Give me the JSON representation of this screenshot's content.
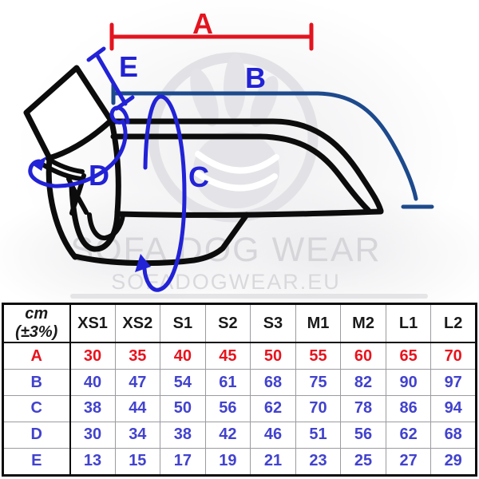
{
  "diagram": {
    "labels": {
      "A": "A",
      "B": "B",
      "C": "C",
      "D": "D",
      "E": "E"
    },
    "watermark": {
      "line1": "SOFA DOG WEAR",
      "line2": "SOFADOGWEAR.EU"
    },
    "colors": {
      "measure_red": "#e3141f",
      "measure_blue": "#2222d6",
      "measure_navy": "#1d4a8c",
      "outline_black": "#0c0c0c",
      "watermark_gray": "#e2e2e6"
    }
  },
  "chart_data": {
    "type": "table",
    "unit_header": "cm (±3%)",
    "columns": [
      "XS1",
      "XS2",
      "S1",
      "S2",
      "S3",
      "M1",
      "M2",
      "L1",
      "L2"
    ],
    "rows": [
      {
        "label": "A",
        "color": "#e8131d",
        "values": [
          30,
          35,
          40,
          45,
          50,
          55,
          60,
          65,
          70
        ]
      },
      {
        "label": "B",
        "color": "#4242ce",
        "values": [
          40,
          47,
          54,
          61,
          68,
          75,
          82,
          90,
          97
        ]
      },
      {
        "label": "C",
        "color": "#4242ce",
        "values": [
          38,
          44,
          50,
          56,
          62,
          70,
          78,
          86,
          94
        ]
      },
      {
        "label": "D",
        "color": "#4242ce",
        "values": [
          30,
          34,
          38,
          42,
          46,
          51,
          56,
          62,
          68
        ]
      },
      {
        "label": "E",
        "color": "#4242ce",
        "values": [
          13,
          15,
          17,
          19,
          21,
          23,
          25,
          27,
          29
        ]
      }
    ]
  }
}
